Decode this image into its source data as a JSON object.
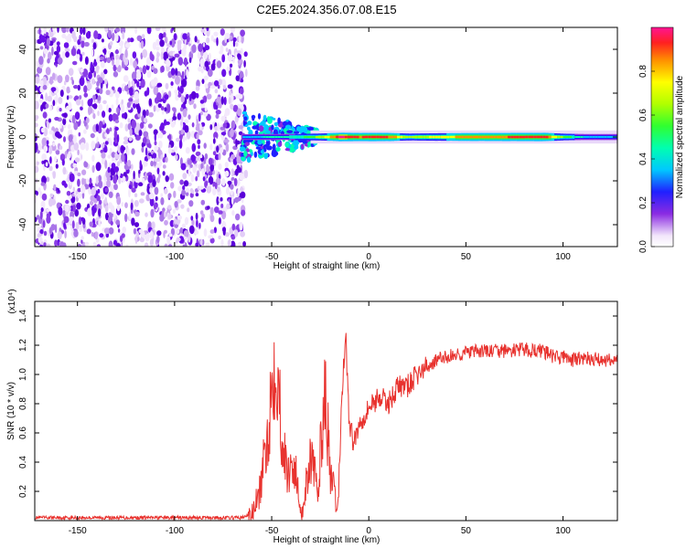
{
  "title": "C2E5.2024.356.07.08.E15",
  "chart_data": [
    {
      "type": "heatmap",
      "xlabel": "Height of straight line (km)",
      "ylabel": "Frequency (Hz)",
      "xlim": [
        -172,
        128
      ],
      "ylim": [
        -50,
        50
      ],
      "xticks": [
        -150,
        -100,
        -50,
        0,
        50,
        100
      ],
      "yticks": [
        -40,
        -20,
        0,
        20,
        40
      ],
      "colorbar": {
        "label": "Normalized spectral amplitude",
        "range": [
          0,
          1
        ],
        "ticks": [
          0.0,
          0.2,
          0.4,
          0.6,
          0.8
        ]
      },
      "ridge": {
        "frequency_hz": 0,
        "x": [
          -65,
          -55,
          -45,
          -35,
          -25,
          -15,
          -5,
          0,
          10,
          20,
          30,
          50,
          70,
          90,
          100,
          110,
          128
        ],
        "amplitude": [
          0.3,
          0.35,
          0.4,
          0.45,
          0.6,
          0.95,
          0.85,
          0.9,
          0.85,
          0.55,
          0.65,
          0.8,
          0.85,
          0.9,
          0.5,
          0.35,
          0.35
        ]
      },
      "noise_region_x": [
        -172,
        -65
      ]
    },
    {
      "type": "line",
      "xlabel": "Height of straight line (km)",
      "ylabel": "SNR (10 * v/v)",
      "y_multiplier": "(x10⁴)",
      "xlim": [
        -172,
        128
      ],
      "ylim": [
        0,
        1.5
      ],
      "xticks": [
        -150,
        -100,
        -50,
        0,
        50,
        100
      ],
      "yticks": [
        0.2,
        0.4,
        0.6,
        0.8,
        1.0,
        1.2,
        1.4
      ],
      "series": [
        {
          "color": "#e8322e",
          "x": [
            -172,
            -100,
            -65,
            -60,
            -56,
            -52,
            -50,
            -48,
            -46,
            -44,
            -42,
            -40,
            -38,
            -36,
            -34,
            -32,
            -30,
            -28,
            -26,
            -24,
            -22,
            -20,
            -18,
            -16,
            -14,
            -12,
            -10,
            -8,
            -6,
            -4,
            -2,
            0,
            2,
            5,
            10,
            15,
            20,
            25,
            30,
            35,
            40,
            50,
            60,
            70,
            80,
            90,
            95,
            100,
            105,
            110,
            120,
            128
          ],
          "y": [
            0.02,
            0.02,
            0.02,
            0.05,
            0.2,
            0.6,
            0.9,
            1.2,
            0.8,
            0.5,
            0.3,
            0.4,
            0.35,
            0.15,
            0.05,
            0.3,
            0.45,
            0.3,
            0.2,
            0.7,
            0.85,
            0.3,
            0.2,
            0.05,
            0.8,
            1.3,
            0.65,
            0.55,
            0.6,
            0.7,
            0.72,
            0.78,
            0.8,
            0.85,
            0.8,
            0.92,
            0.92,
            1.0,
            1.05,
            1.1,
            1.12,
            1.15,
            1.16,
            1.16,
            1.17,
            1.16,
            1.12,
            1.12,
            1.1,
            1.11,
            1.1,
            1.1
          ]
        }
      ]
    }
  ]
}
